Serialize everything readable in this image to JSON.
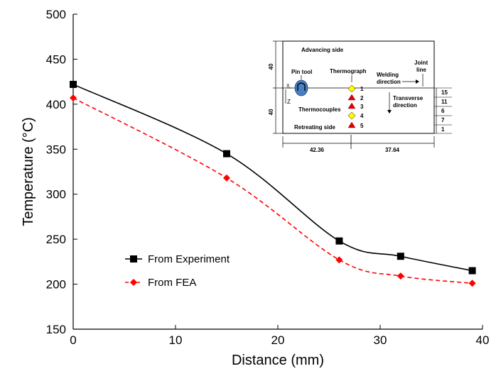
{
  "chart_data": {
    "type": "line",
    "xlabel": "Distance (mm)",
    "ylabel": "Temperature  (°C)",
    "xlim": [
      0,
      40
    ],
    "ylim": [
      150,
      500
    ],
    "x_ticks": [
      "0",
      "10",
      "20",
      "30",
      "40"
    ],
    "y_ticks": [
      "150",
      "200",
      "250",
      "300",
      "350",
      "400",
      "450",
      "500"
    ],
    "grid": false,
    "legend_position": "bottom-left",
    "series": [
      {
        "name": "From Experiment",
        "color": "#000000",
        "line_style": "solid",
        "marker": "square",
        "x": [
          0,
          15,
          26,
          32,
          39
        ],
        "y": [
          422,
          345,
          248,
          231,
          215
        ]
      },
      {
        "name": "From FEA",
        "color": "#ff0000",
        "line_style": "dashed",
        "marker": "diamond",
        "x": [
          0,
          15,
          26,
          32,
          39
        ],
        "y": [
          407,
          318,
          227,
          209,
          201
        ]
      }
    ]
  },
  "inset": {
    "advancing_side": "Advancing side",
    "pin_tool": "Pin tool",
    "thermograph": "Thermograph",
    "welding_direction_1": "Welding",
    "welding_direction_2": "direction",
    "joint_line_1": "Joint",
    "joint_line_2": "line",
    "transverse_direction_1": "Transverse",
    "transverse_direction_2": "direction",
    "thermocouples": "Thermocouples",
    "retreating_side": "Retreating side",
    "axis_x": "X",
    "axis_z": "Z",
    "dim_top": "40",
    "dim_bottom": "40",
    "dim_left": "42.36",
    "dim_right": "37.64",
    "point_labels": [
      "1",
      "2",
      "3",
      "4",
      "5"
    ],
    "spacings": [
      "15",
      "11",
      "6",
      "7",
      "1"
    ],
    "colors": {
      "thermograph_marker": "#ffff00",
      "thermocouple_marker": "#e00000",
      "pin_tool": "#4a7fc1"
    }
  }
}
